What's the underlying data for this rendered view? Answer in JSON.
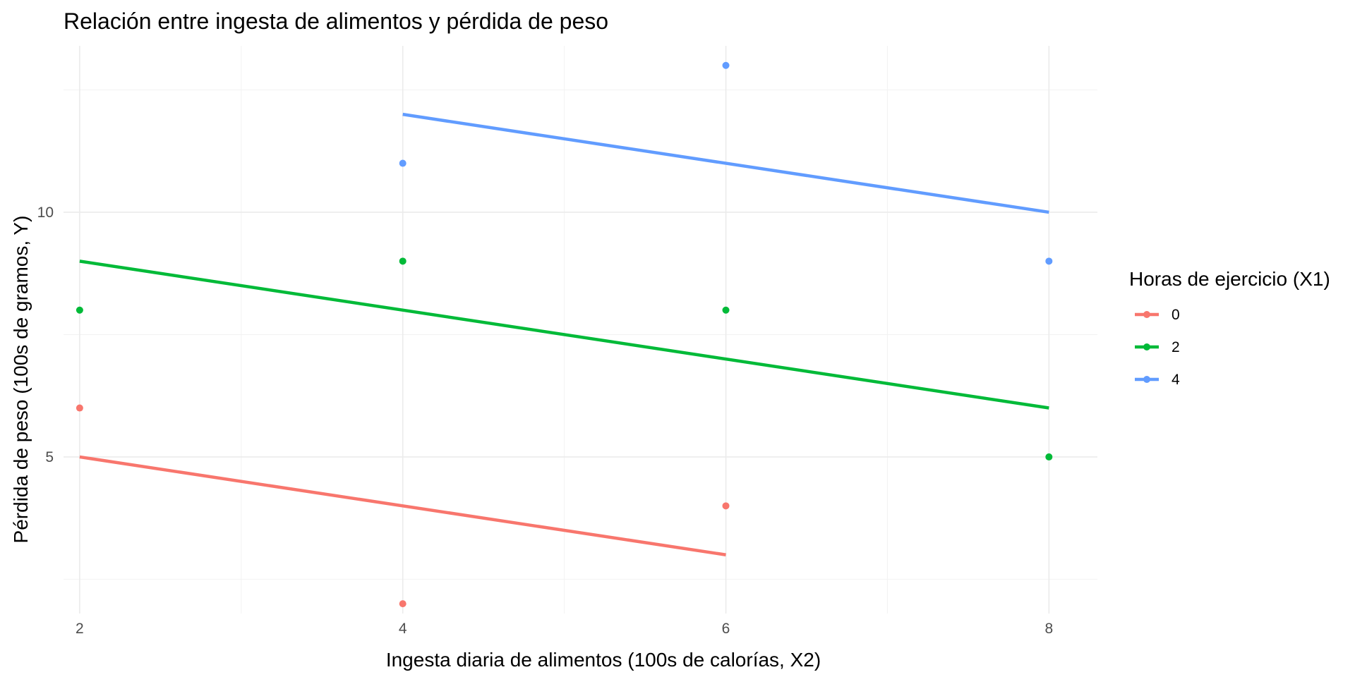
{
  "chart_data": {
    "type": "scatter",
    "title": "Relación entre ingesta de alimentos y pérdida de peso",
    "xlabel": "Ingesta diaria de alimentos (100s de calorías, X2)",
    "ylabel": "Pérdida de peso (100s de gramos, Y)",
    "xlim": [
      1.9,
      8.3
    ],
    "ylim": [
      1.8,
      13.4
    ],
    "x_ticks": [
      2,
      4,
      6,
      8
    ],
    "y_ticks": [
      5,
      10
    ],
    "x_minor": [
      3,
      5,
      7
    ],
    "y_minor": [
      2.5,
      7.5,
      12.5
    ],
    "grid": true,
    "legend": {
      "title": "Horas de ejercicio (X1)",
      "position": "right"
    },
    "series": [
      {
        "name": "0",
        "color": "#F8766D",
        "points": [
          {
            "x": 2,
            "y": 6
          },
          {
            "x": 4,
            "y": 2
          },
          {
            "x": 6,
            "y": 4
          }
        ],
        "fit": [
          {
            "x": 2,
            "y": 5
          },
          {
            "x": 6,
            "y": 3
          }
        ]
      },
      {
        "name": "2",
        "color": "#00BA38",
        "points": [
          {
            "x": 2,
            "y": 8
          },
          {
            "x": 4,
            "y": 9
          },
          {
            "x": 6,
            "y": 8
          },
          {
            "x": 8,
            "y": 5
          }
        ],
        "fit": [
          {
            "x": 2,
            "y": 9
          },
          {
            "x": 8,
            "y": 6
          }
        ]
      },
      {
        "name": "4",
        "color": "#619CFF",
        "points": [
          {
            "x": 4,
            "y": 11
          },
          {
            "x": 6,
            "y": 13
          },
          {
            "x": 8,
            "y": 9
          }
        ],
        "fit": [
          {
            "x": 4,
            "y": 12
          },
          {
            "x": 8,
            "y": 10
          }
        ]
      }
    ]
  }
}
